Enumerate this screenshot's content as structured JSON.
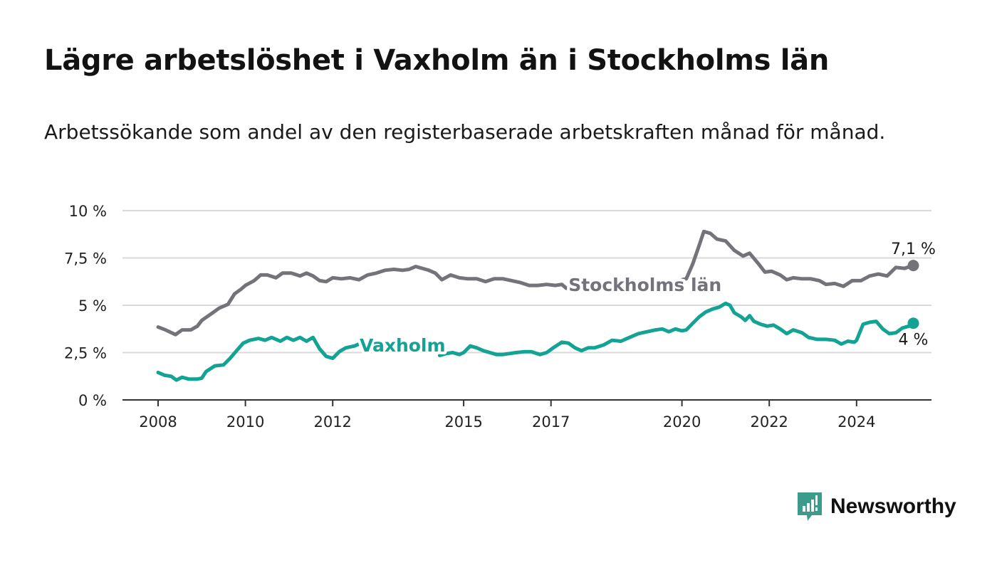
{
  "title": "Lägre arbetslöshet i Vaxholm än i Stockholms län",
  "subtitle": "Arbetssökande som andel av den registerbaserade arbetskraften månad för månad.",
  "brand": {
    "name": "Newsworthy",
    "color": "#3d9b8c"
  },
  "chart_data": {
    "type": "line",
    "x_unit": "year",
    "xlim": [
      2007.2,
      2025.7
    ],
    "ylim": [
      0,
      10
    ],
    "y_ticks": [
      {
        "value": 0,
        "label": "0 %"
      },
      {
        "value": 2.5,
        "label": "2,5 %"
      },
      {
        "value": 5,
        "label": "5 %"
      },
      {
        "value": 7.5,
        "label": "7,5 %"
      },
      {
        "value": 10,
        "label": "10 %"
      }
    ],
    "x_ticks": [
      {
        "value": 2008,
        "label": "2008"
      },
      {
        "value": 2010,
        "label": "2010"
      },
      {
        "value": 2012,
        "label": "2012"
      },
      {
        "value": 2015,
        "label": "2015"
      },
      {
        "value": 2017,
        "label": "2017"
      },
      {
        "value": 2020,
        "label": "2020"
      },
      {
        "value": 2022,
        "label": "2022"
      },
      {
        "value": 2024,
        "label": "2024"
      }
    ],
    "grid": "horizontal",
    "series": [
      {
        "name": "Stockholms län",
        "color": "#75737a",
        "end_label": "7,1 %",
        "points": [
          [
            2008.0,
            3.85
          ],
          [
            2008.17,
            3.7
          ],
          [
            2008.35,
            3.5
          ],
          [
            2008.4,
            3.45
          ],
          [
            2008.55,
            3.7
          ],
          [
            2008.75,
            3.7
          ],
          [
            2008.9,
            3.9
          ],
          [
            2009.0,
            4.2
          ],
          [
            2009.25,
            4.6
          ],
          [
            2009.4,
            4.85
          ],
          [
            2009.6,
            5.05
          ],
          [
            2009.75,
            5.6
          ],
          [
            2009.9,
            5.85
          ],
          [
            2010.0,
            6.05
          ],
          [
            2010.2,
            6.3
          ],
          [
            2010.35,
            6.6
          ],
          [
            2010.5,
            6.6
          ],
          [
            2010.7,
            6.45
          ],
          [
            2010.85,
            6.7
          ],
          [
            2011.05,
            6.7
          ],
          [
            2011.25,
            6.55
          ],
          [
            2011.4,
            6.7
          ],
          [
            2011.55,
            6.55
          ],
          [
            2011.7,
            6.3
          ],
          [
            2011.85,
            6.25
          ],
          [
            2012.0,
            6.45
          ],
          [
            2012.2,
            6.4
          ],
          [
            2012.4,
            6.45
          ],
          [
            2012.6,
            6.35
          ],
          [
            2012.8,
            6.6
          ],
          [
            2013.0,
            6.7
          ],
          [
            2013.2,
            6.85
          ],
          [
            2013.4,
            6.9
          ],
          [
            2013.6,
            6.85
          ],
          [
            2013.75,
            6.9
          ],
          [
            2013.9,
            7.05
          ],
          [
            2014.05,
            6.95
          ],
          [
            2014.2,
            6.85
          ],
          [
            2014.35,
            6.7
          ],
          [
            2014.5,
            6.35
          ],
          [
            2014.7,
            6.6
          ],
          [
            2014.9,
            6.45
          ],
          [
            2015.1,
            6.4
          ],
          [
            2015.3,
            6.4
          ],
          [
            2015.5,
            6.25
          ],
          [
            2015.7,
            6.4
          ],
          [
            2015.9,
            6.4
          ],
          [
            2016.1,
            6.3
          ],
          [
            2016.3,
            6.2
          ],
          [
            2016.5,
            6.05
          ],
          [
            2016.7,
            6.05
          ],
          [
            2016.9,
            6.1
          ],
          [
            2017.1,
            6.05
          ],
          [
            2017.25,
            6.1
          ],
          [
            2017.35,
            5.9
          ],
          null,
          [
            2020.0,
            6.35
          ],
          [
            2020.1,
            6.4
          ],
          [
            2020.25,
            7.2
          ],
          [
            2020.4,
            8.2
          ],
          [
            2020.5,
            8.9
          ],
          [
            2020.65,
            8.8
          ],
          [
            2020.8,
            8.5
          ],
          [
            2021.0,
            8.4
          ],
          [
            2021.2,
            7.9
          ],
          [
            2021.4,
            7.6
          ],
          [
            2021.55,
            7.75
          ],
          [
            2021.75,
            7.2
          ],
          [
            2021.9,
            6.75
          ],
          [
            2022.05,
            6.8
          ],
          [
            2022.25,
            6.6
          ],
          [
            2022.4,
            6.35
          ],
          [
            2022.55,
            6.45
          ],
          [
            2022.75,
            6.4
          ],
          [
            2022.95,
            6.4
          ],
          [
            2023.15,
            6.3
          ],
          [
            2023.3,
            6.1
          ],
          [
            2023.5,
            6.15
          ],
          [
            2023.7,
            6.0
          ],
          [
            2023.9,
            6.3
          ],
          [
            2024.1,
            6.3
          ],
          [
            2024.3,
            6.55
          ],
          [
            2024.5,
            6.65
          ],
          [
            2024.7,
            6.55
          ],
          [
            2024.9,
            7.0
          ],
          [
            2025.1,
            6.95
          ],
          [
            2025.3,
            7.1
          ]
        ]
      },
      {
        "name": "Vaxholm",
        "color": "#13a394",
        "end_label": "4 %",
        "points": [
          [
            2008.0,
            1.45
          ],
          [
            2008.15,
            1.3
          ],
          [
            2008.3,
            1.25
          ],
          [
            2008.42,
            1.05
          ],
          [
            2008.55,
            1.2
          ],
          [
            2008.7,
            1.1
          ],
          [
            2008.9,
            1.1
          ],
          [
            2009.0,
            1.15
          ],
          [
            2009.1,
            1.5
          ],
          [
            2009.3,
            1.8
          ],
          [
            2009.5,
            1.85
          ],
          [
            2009.65,
            2.2
          ],
          [
            2009.8,
            2.6
          ],
          [
            2009.95,
            3.0
          ],
          [
            2010.1,
            3.15
          ],
          [
            2010.3,
            3.25
          ],
          [
            2010.45,
            3.15
          ],
          [
            2010.6,
            3.3
          ],
          [
            2010.8,
            3.1
          ],
          [
            2010.95,
            3.3
          ],
          [
            2011.1,
            3.15
          ],
          [
            2011.25,
            3.3
          ],
          [
            2011.4,
            3.1
          ],
          [
            2011.55,
            3.3
          ],
          [
            2011.7,
            2.7
          ],
          [
            2011.85,
            2.3
          ],
          [
            2012.0,
            2.2
          ],
          [
            2012.15,
            2.55
          ],
          [
            2012.3,
            2.75
          ],
          [
            2012.5,
            2.85
          ],
          [
            2012.65,
            3.0
          ],
          [
            2012.85,
            2.85
          ],
          [
            2013.0,
            2.9
          ],
          [
            2013.15,
            2.75
          ],
          null,
          [
            2014.45,
            2.35
          ],
          [
            2014.6,
            2.45
          ],
          [
            2014.75,
            2.5
          ],
          [
            2014.9,
            2.4
          ],
          [
            2015.0,
            2.5
          ],
          [
            2015.15,
            2.85
          ],
          [
            2015.3,
            2.75
          ],
          [
            2015.45,
            2.6
          ],
          [
            2015.6,
            2.5
          ],
          [
            2015.75,
            2.4
          ],
          [
            2015.9,
            2.4
          ],
          [
            2016.05,
            2.45
          ],
          [
            2016.2,
            2.5
          ],
          [
            2016.4,
            2.55
          ],
          [
            2016.55,
            2.55
          ],
          [
            2016.75,
            2.4
          ],
          [
            2016.9,
            2.5
          ],
          [
            2017.05,
            2.75
          ],
          [
            2017.25,
            3.05
          ],
          [
            2017.4,
            3.0
          ],
          [
            2017.55,
            2.75
          ],
          [
            2017.7,
            2.6
          ],
          [
            2017.85,
            2.75
          ],
          [
            2018.0,
            2.75
          ],
          [
            2018.2,
            2.9
          ],
          [
            2018.4,
            3.15
          ],
          [
            2018.6,
            3.1
          ],
          [
            2018.8,
            3.3
          ],
          [
            2019.0,
            3.5
          ],
          [
            2019.2,
            3.6
          ],
          [
            2019.4,
            3.7
          ],
          [
            2019.55,
            3.75
          ],
          [
            2019.7,
            3.6
          ],
          [
            2019.85,
            3.75
          ],
          [
            2020.0,
            3.65
          ],
          [
            2020.1,
            3.7
          ],
          [
            2020.25,
            4.05
          ],
          [
            2020.4,
            4.4
          ],
          [
            2020.55,
            4.65
          ],
          [
            2020.7,
            4.8
          ],
          [
            2020.85,
            4.9
          ],
          [
            2021.0,
            5.1
          ],
          [
            2021.1,
            5.0
          ],
          [
            2021.2,
            4.6
          ],
          [
            2021.35,
            4.4
          ],
          [
            2021.45,
            4.2
          ],
          [
            2021.55,
            4.45
          ],
          [
            2021.65,
            4.15
          ],
          [
            2021.8,
            4.0
          ],
          [
            2021.95,
            3.9
          ],
          [
            2022.1,
            3.95
          ],
          [
            2022.25,
            3.75
          ],
          [
            2022.4,
            3.5
          ],
          [
            2022.55,
            3.7
          ],
          [
            2022.75,
            3.55
          ],
          [
            2022.9,
            3.3
          ],
          [
            2023.1,
            3.2
          ],
          [
            2023.3,
            3.2
          ],
          [
            2023.5,
            3.15
          ],
          [
            2023.65,
            2.95
          ],
          [
            2023.8,
            3.1
          ],
          [
            2023.95,
            3.05
          ],
          [
            2024.0,
            3.15
          ],
          [
            2024.15,
            4.0
          ],
          [
            2024.3,
            4.1
          ],
          [
            2024.45,
            4.15
          ],
          [
            2024.6,
            3.75
          ],
          [
            2024.75,
            3.5
          ],
          [
            2024.9,
            3.55
          ],
          [
            2025.05,
            3.8
          ],
          [
            2025.2,
            3.9
          ],
          [
            2025.3,
            4.05
          ]
        ]
      }
    ]
  }
}
